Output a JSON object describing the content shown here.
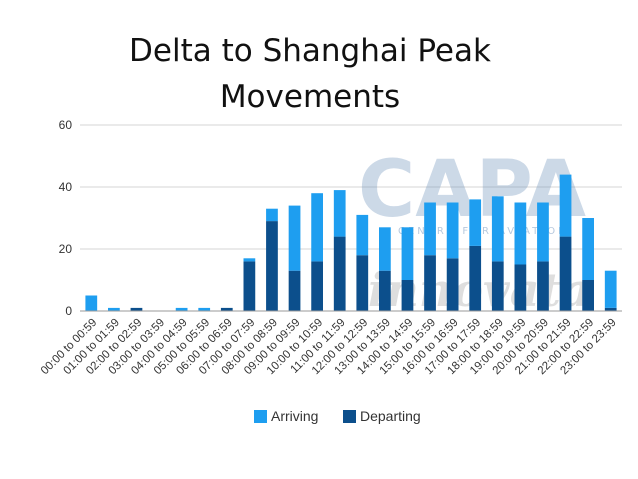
{
  "title_lines": [
    "Delta to Shanghai Peak",
    "Movements"
  ],
  "watermark": {
    "brand": "CAPA",
    "tagline": "CENTRE FOR AVIATION",
    "script": "innovata"
  },
  "colors": {
    "arriving": "#1e9ef0",
    "departing": "#0c4f8c",
    "grid": "#d4d4d4",
    "axis": "#9a9a9a"
  },
  "chart_data": {
    "type": "bar",
    "stacked": true,
    "categories": [
      "00:00 to 00:59",
      "01:00 to 01:59",
      "02:00 to 02:59",
      "03:00 to 03:59",
      "04:00 to 04:59",
      "05:00 to 05:59",
      "06:00 to 06:59",
      "07:00 to 07:59",
      "08:00 to 08:59",
      "09:00 to 09:59",
      "10:00 to 10:59",
      "11:00 to 11:59",
      "12:00 to 12:59",
      "13:00 to 13:59",
      "14:00 to 14:59",
      "15:00 to 15:59",
      "16:00 to 16:59",
      "17:00 to 17:59",
      "18:00 to 18:59",
      "19:00 to 19:59",
      "20:00 to 20:59",
      "21:00 to 21:59",
      "22:00 to 22:59",
      "23:00 to 23:59"
    ],
    "series": [
      {
        "name": "Departing",
        "values": [
          0,
          0,
          1,
          0,
          0,
          0,
          1,
          16,
          29,
          13,
          16,
          24,
          18,
          13,
          10,
          18,
          17,
          21,
          16,
          15,
          16,
          24,
          10,
          1
        ]
      },
      {
        "name": "Arriving",
        "values": [
          5,
          1,
          0,
          0,
          1,
          1,
          0,
          1,
          4,
          21,
          22,
          15,
          13,
          14,
          17,
          17,
          18,
          15,
          21,
          20,
          19,
          20,
          20,
          12
        ]
      }
    ],
    "ylim": [
      0,
      60
    ],
    "yticks": [
      0,
      20,
      40,
      60
    ],
    "grid": true,
    "legend": {
      "placement": "bottom",
      "entries": [
        "Arriving",
        "Departing"
      ]
    }
  }
}
